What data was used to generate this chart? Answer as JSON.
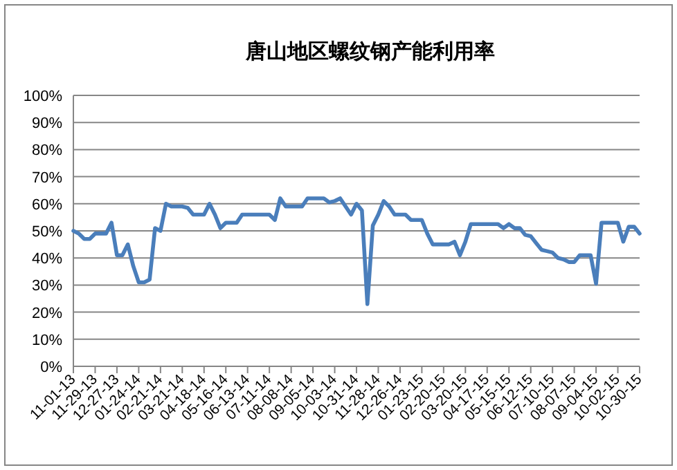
{
  "chart_data": {
    "type": "line",
    "title": "唐山地区螺纹钢产能利用率",
    "categories": [
      "11-01-13",
      null,
      null,
      null,
      "11-29-13",
      null,
      null,
      null,
      "12-27-13",
      null,
      null,
      null,
      "01-24-14",
      null,
      null,
      null,
      "02-21-14",
      null,
      null,
      null,
      "03-21-14",
      null,
      null,
      null,
      "04-18-14",
      null,
      null,
      null,
      "05-16-14",
      null,
      null,
      null,
      "06-13-14",
      null,
      null,
      null,
      "07-11-14",
      null,
      null,
      null,
      "08-08-14",
      null,
      null,
      null,
      "09-05-14",
      null,
      null,
      null,
      "10-03-14",
      null,
      null,
      null,
      "10-31-14",
      null,
      null,
      null,
      "11-28-14",
      null,
      null,
      null,
      "12-26-14",
      null,
      null,
      null,
      "01-23-15",
      null,
      null,
      null,
      "02-20-15",
      null,
      null,
      null,
      "03-20-15",
      null,
      null,
      null,
      "04-17-15",
      null,
      null,
      null,
      "05-15-15",
      null,
      null,
      null,
      "06-12-15",
      null,
      null,
      null,
      "07-10-15",
      null,
      null,
      null,
      "08-07-15",
      null,
      null,
      null,
      "09-04-15",
      null,
      null,
      null,
      "10-02-15",
      null,
      null,
      null,
      "10-30-15"
    ],
    "series": [
      {
        "color": "#4a7ebb",
        "values": [
          50,
          49,
          47,
          47,
          49,
          49,
          49,
          53,
          41,
          41,
          45,
          37,
          31,
          31,
          32,
          51,
          50,
          60,
          59,
          59,
          59,
          58.5,
          56,
          56,
          56,
          60,
          56,
          51,
          53,
          53,
          53,
          56,
          56,
          56,
          56,
          56,
          56,
          54,
          62,
          59,
          59,
          59,
          59,
          62,
          62,
          62,
          62,
          60.5,
          61,
          62,
          59,
          56,
          60,
          57.5,
          23,
          52,
          56,
          61,
          59,
          56,
          56,
          56,
          54,
          54,
          54,
          49,
          45,
          45,
          45,
          45,
          46,
          41,
          46,
          52.5,
          52.5,
          52.5,
          52.5,
          52.5,
          52.5,
          51,
          52.5,
          51,
          51,
          48.5,
          48,
          45.5,
          43,
          42.5,
          42,
          40,
          39.5,
          38.5,
          38.5,
          41,
          41,
          41,
          30.5,
          53,
          53,
          53,
          53,
          46,
          51.5,
          51.5,
          49
        ]
      }
    ],
    "ylim": [
      0,
      100
    ],
    "yticks": [
      {
        "value": 0,
        "label": "0%"
      },
      {
        "value": 10,
        "label": "10%"
      },
      {
        "value": 20,
        "label": "20%"
      },
      {
        "value": 30,
        "label": "30%"
      },
      {
        "value": 40,
        "label": "40%"
      },
      {
        "value": 50,
        "label": "50%"
      },
      {
        "value": 60,
        "label": "60%"
      },
      {
        "value": 70,
        "label": "70%"
      },
      {
        "value": 80,
        "label": "80%"
      },
      {
        "value": 90,
        "label": "90%"
      },
      {
        "value": 100,
        "label": "100%"
      }
    ],
    "grid": "y",
    "marker": "none",
    "line_style": "solid"
  }
}
